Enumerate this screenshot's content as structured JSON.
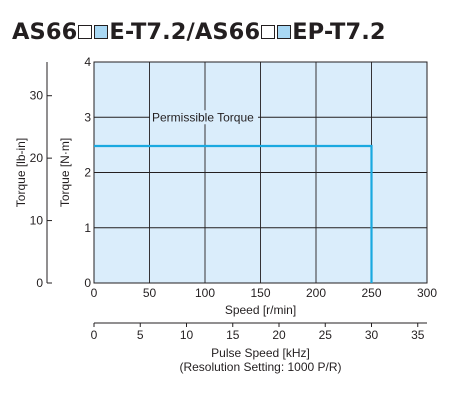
{
  "title": {
    "segments": [
      {
        "kind": "text",
        "text": "AS66"
      },
      {
        "kind": "box",
        "color": "white"
      },
      {
        "kind": "box",
        "color": "blue"
      },
      {
        "kind": "text",
        "text": "E-T7.2/AS66"
      },
      {
        "kind": "box",
        "color": "white"
      },
      {
        "kind": "box",
        "color": "blue"
      },
      {
        "kind": "text",
        "text": "EP-T7.2"
      }
    ]
  },
  "colors": {
    "plot_background": "#daedfb",
    "grid": "#231f20",
    "torque_line": "#1aa9e0",
    "box_fill": "#a9d8f4",
    "text": "#231f20"
  },
  "chart_data": {
    "type": "line",
    "title": "",
    "xlabel": "Speed [r/min]",
    "ylabel": "Torque [N·m]",
    "xlim": [
      0,
      300
    ],
    "ylim": [
      0,
      4
    ],
    "x_ticks": [
      0,
      50,
      100,
      150,
      200,
      250,
      300
    ],
    "y_ticks": [
      0,
      1,
      2,
      3,
      4
    ],
    "grid": true,
    "series": [
      {
        "name": "Permissible Torque",
        "x": [
          0,
          250,
          250
        ],
        "y": [
          2.48,
          2.48,
          0
        ]
      }
    ],
    "secondary_y_axis": {
      "label": "Torque [lb-in]",
      "range": [
        0,
        35.4
      ],
      "ticks": [
        0,
        10,
        20,
        30
      ]
    },
    "secondary_x_axis": {
      "label": "Pulse Speed [kHz]",
      "sublabel": "(Resolution Setting: 1000 P/R)",
      "range": [
        0,
        36
      ],
      "ticks": [
        0,
        5,
        10,
        15,
        20,
        25,
        30,
        35
      ]
    }
  }
}
